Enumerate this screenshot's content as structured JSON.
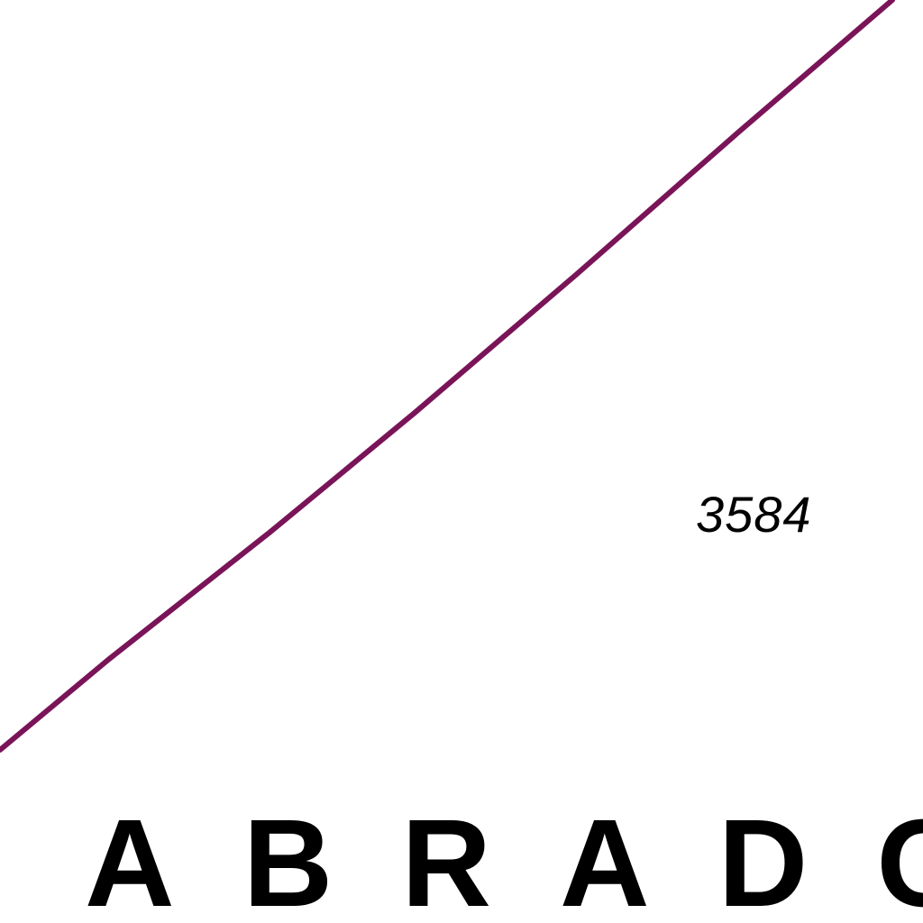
{
  "map": {
    "elevation_label": "3584",
    "region_label": "ABRADO",
    "boundary_color": "#7a1458",
    "text_color": "#000000"
  }
}
